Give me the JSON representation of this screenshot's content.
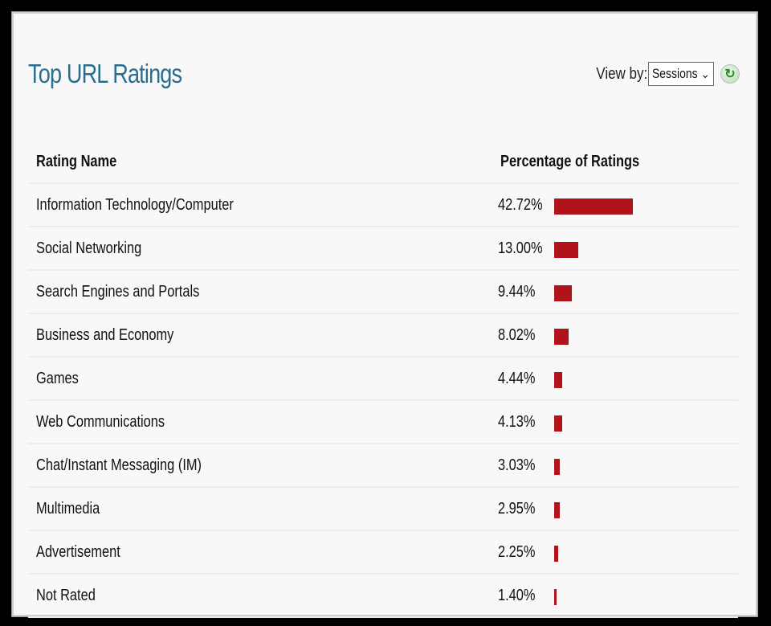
{
  "panel": {
    "title": "Top URL Ratings",
    "view_by_label": "View by:",
    "view_by_selected": "Sessions"
  },
  "table": {
    "headers": [
      "Rating Name",
      "Percentage of Ratings"
    ],
    "rows": [
      {
        "name": "Information Technology/Computer",
        "percent_label": "42.72%",
        "percent": 42.72
      },
      {
        "name": "Social Networking",
        "percent_label": "13.00%",
        "percent": 13.0
      },
      {
        "name": "Search Engines and Portals",
        "percent_label": "9.44%",
        "percent": 9.44
      },
      {
        "name": "Business and Economy",
        "percent_label": "8.02%",
        "percent": 8.02
      },
      {
        "name": "Games",
        "percent_label": "4.44%",
        "percent": 4.44
      },
      {
        "name": "Web Communications",
        "percent_label": "4.13%",
        "percent": 4.13
      },
      {
        "name": "Chat/Instant Messaging (IM)",
        "percent_label": "3.03%",
        "percent": 3.03
      },
      {
        "name": "Multimedia",
        "percent_label": "2.95%",
        "percent": 2.95
      },
      {
        "name": "Advertisement",
        "percent_label": "2.25%",
        "percent": 2.25
      },
      {
        "name": "Not Rated",
        "percent_label": "1.40%",
        "percent": 1.4
      }
    ]
  },
  "colors": {
    "title": "#2a6e8e",
    "bar": "#b0141a",
    "refresh_icon": "#2f8a2f"
  },
  "icons": {
    "refresh": "refresh-icon",
    "dropdown": "chevron-down-icon"
  }
}
